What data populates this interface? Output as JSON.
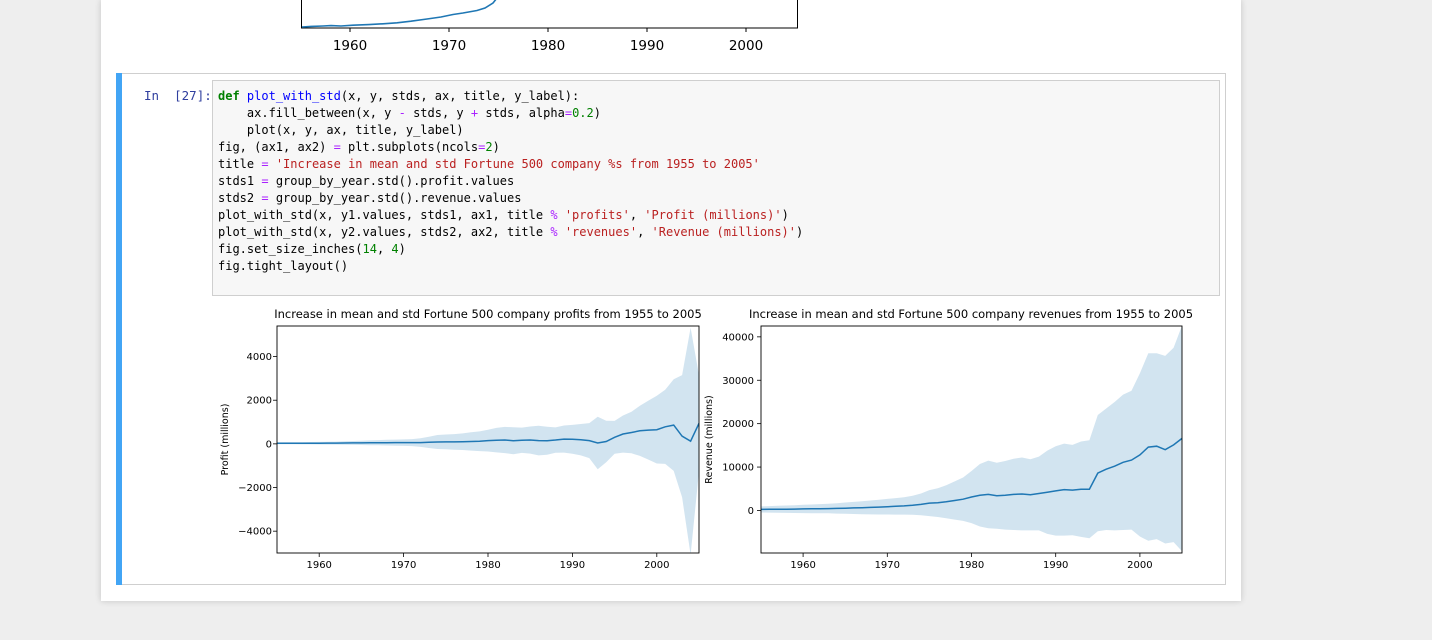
{
  "top_chart": {
    "x_ticks": [
      "1960",
      "1970",
      "1980",
      "1990",
      "2000"
    ]
  },
  "cell": {
    "prompt_in": "In",
    "prompt_num": "[27]:",
    "code_lines": [
      "def plot_with_std(x, y, stds, ax, title, y_label):",
      "    ax.fill_between(x, y - stds, y + stds, alpha=0.2)",
      "    plot(x, y, ax, title, y_label)",
      "fig, (ax1, ax2) = plt.subplots(ncols=2)",
      "title = 'Increase in mean and std Fortune 500 company %s from 1955 to 2005'",
      "stds1 = group_by_year.std().profit.values",
      "stds2 = group_by_year.std().revenue.values",
      "plot_with_std(x, y1.values, stds1, ax1, title % 'profits', 'Profit (millions)')",
      "plot_with_std(x, y2.values, stds2, ax2, title % 'revenues', 'Revenue (millions)')",
      "fig.set_size_inches(14, 4)",
      "fig.tight_layout()"
    ]
  },
  "colors": {
    "line": "#1f77b4",
    "band": "#1f77b4",
    "cell_accent": "#42a5f5"
  },
  "chart_data": [
    {
      "type": "line",
      "title": "Increase in mean and std Fortune 500 company profits from 1955 to 2005",
      "xlabel": "",
      "ylabel": "Profit (millions)",
      "xlim": [
        1955,
        2005
      ],
      "ylim": [
        -5000,
        5400
      ],
      "x_ticks": [
        1960,
        1970,
        1980,
        1990,
        2000
      ],
      "y_ticks": [
        4000,
        2000,
        0,
        -2000,
        -4000
      ],
      "y_tick_labels": [
        "4000",
        "2000",
        "0",
        "−2000",
        "−4000"
      ],
      "x": [
        1955,
        1956,
        1957,
        1958,
        1959,
        1960,
        1961,
        1962,
        1963,
        1964,
        1965,
        1966,
        1967,
        1968,
        1969,
        1970,
        1971,
        1972,
        1973,
        1974,
        1975,
        1976,
        1977,
        1978,
        1979,
        1980,
        1981,
        1982,
        1983,
        1984,
        1985,
        1986,
        1987,
        1988,
        1989,
        1990,
        1991,
        1992,
        1993,
        1994,
        1995,
        1996,
        1997,
        1998,
        1999,
        2000,
        2001,
        2002,
        2003,
        2004,
        2005
      ],
      "mean": [
        25,
        27,
        28,
        27,
        29,
        32,
        33,
        35,
        38,
        42,
        46,
        50,
        53,
        55,
        56,
        56,
        57,
        60,
        70,
        85,
        90,
        88,
        100,
        110,
        120,
        150,
        170,
        175,
        140,
        165,
        175,
        150,
        145,
        175,
        220,
        210,
        190,
        150,
        40,
        110,
        300,
        450,
        520,
        600,
        630,
        650,
        780,
        860,
        350,
        120,
        940
      ],
      "std": [
        40,
        45,
        48,
        50,
        55,
        60,
        65,
        70,
        80,
        90,
        100,
        110,
        120,
        130,
        140,
        150,
        160,
        200,
        260,
        320,
        340,
        360,
        380,
        420,
        450,
        500,
        560,
        600,
        620,
        580,
        620,
        680,
        640,
        580,
        620,
        660,
        720,
        800,
        1200,
        950,
        750,
        850,
        950,
        1150,
        1350,
        1550,
        1700,
        2100,
        2800,
        5200,
        2200
      ],
      "grid": false,
      "legend": "none"
    },
    {
      "type": "line",
      "title": "Increase in mean and std Fortune 500 company revenues from 1955 to 2005",
      "xlabel": "",
      "ylabel": "Revenue (millions)",
      "xlim": [
        1955,
        2005
      ],
      "ylim": [
        -9800,
        42500
      ],
      "x_ticks": [
        1960,
        1970,
        1980,
        1990,
        2000
      ],
      "y_ticks": [
        40000,
        30000,
        20000,
        10000,
        0
      ],
      "y_tick_labels": [
        "40000",
        "30000",
        "20000",
        "10000",
        "0"
      ],
      "x": [
        1955,
        1956,
        1957,
        1958,
        1959,
        1960,
        1961,
        1962,
        1963,
        1964,
        1965,
        1966,
        1967,
        1968,
        1969,
        1970,
        1971,
        1972,
        1973,
        1974,
        1975,
        1976,
        1977,
        1978,
        1979,
        1980,
        1981,
        1982,
        1983,
        1984,
        1985,
        1986,
        1987,
        1988,
        1989,
        1990,
        1991,
        1992,
        1993,
        1994,
        1995,
        1996,
        1997,
        1998,
        1999,
        2000,
        2001,
        2002,
        2003,
        2004,
        2005
      ],
      "mean": [
        240,
        260,
        280,
        300,
        320,
        350,
        380,
        410,
        440,
        480,
        530,
        580,
        640,
        700,
        780,
        860,
        950,
        1050,
        1200,
        1400,
        1700,
        1800,
        2000,
        2300,
        2600,
        3100,
        3500,
        3700,
        3400,
        3500,
        3700,
        3800,
        3600,
        3900,
        4200,
        4500,
        4800,
        4700,
        4900,
        4900,
        8600,
        9500,
        10200,
        11100,
        11600,
        12800,
        14600,
        14800,
        14000,
        15100,
        16600
      ],
      "std": [
        700,
        750,
        800,
        850,
        900,
        950,
        1000,
        1050,
        1100,
        1200,
        1300,
        1400,
        1500,
        1600,
        1700,
        1800,
        1900,
        2000,
        2200,
        2500,
        3000,
        3300,
        3800,
        4400,
        5000,
        6000,
        7200,
        7800,
        7600,
        7900,
        8200,
        8400,
        8200,
        8500,
        9600,
        10300,
        10600,
        10400,
        11000,
        11300,
        13400,
        14000,
        14800,
        15600,
        16000,
        18800,
        21600,
        21400,
        21600,
        22400,
        26000
      ],
      "grid": false,
      "legend": "none"
    }
  ]
}
